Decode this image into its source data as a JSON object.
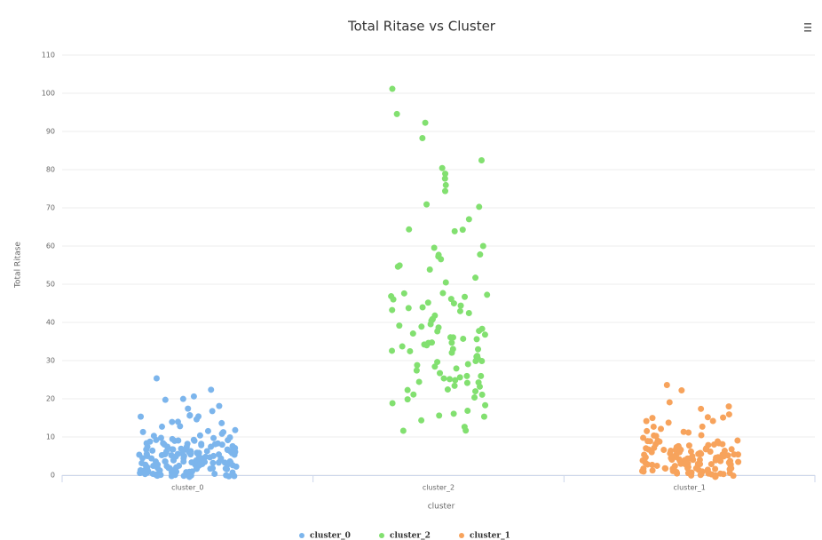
{
  "chart_data": {
    "type": "scatter",
    "title": "Total Ritase vs Cluster",
    "x_label": "cluster",
    "y_label": "Total Ritase",
    "categories": [
      "cluster_0",
      "cluster_2",
      "cluster_1"
    ],
    "ylim": [
      0,
      110
    ],
    "yticks": [
      0,
      10,
      20,
      30,
      40,
      50,
      60,
      70,
      80,
      90,
      100,
      110
    ],
    "grid": true,
    "legend": "bottom",
    "series": [
      {
        "name": "cluster_0",
        "color": "#7cb5ec",
        "category": 0,
        "values": [
          25,
          22,
          21,
          20,
          20,
          18,
          17,
          17,
          16,
          16,
          15,
          15,
          15,
          14,
          14,
          14,
          13,
          13,
          12,
          12,
          11,
          11,
          11,
          10,
          10,
          10,
          10,
          10,
          9,
          9,
          9,
          9,
          9,
          9,
          9,
          9,
          8,
          8,
          8,
          8,
          8,
          8,
          8,
          8,
          8,
          8,
          7,
          7,
          7,
          7,
          7,
          7,
          7,
          7,
          7,
          7,
          7,
          7,
          6,
          6,
          6,
          6,
          6,
          6,
          6,
          6,
          6,
          6,
          6,
          6,
          6,
          6,
          5,
          5,
          5,
          5,
          5,
          5,
          5,
          5,
          5,
          5,
          5,
          5,
          5,
          5,
          5,
          4,
          4,
          4,
          4,
          4,
          4,
          4,
          4,
          4,
          4,
          4,
          4,
          4,
          4,
          4,
          4,
          3,
          3,
          3,
          3,
          3,
          3,
          3,
          3,
          3,
          3,
          3,
          3,
          3,
          3,
          3,
          3,
          2,
          2,
          2,
          2,
          2,
          2,
          2,
          2,
          2,
          2,
          2,
          2,
          2,
          2,
          2,
          2,
          1,
          1,
          1,
          1,
          1,
          1,
          1,
          1,
          1,
          1,
          1,
          1,
          1,
          1,
          1,
          1,
          0,
          0,
          0,
          0,
          0,
          0,
          0,
          0,
          0,
          0,
          0,
          0,
          0,
          0,
          0,
          0
        ]
      },
      {
        "name": "cluster_2",
        "color": "#82e070",
        "category": 1,
        "values": [
          101,
          95,
          92,
          88,
          82,
          80,
          79,
          78,
          76,
          74,
          71,
          70,
          67,
          64,
          64,
          64,
          60,
          60,
          58,
          58,
          57,
          57,
          55,
          55,
          54,
          52,
          50,
          48,
          48,
          47,
          47,
          46,
          46,
          45,
          44,
          44,
          43,
          42,
          42,
          41,
          40,
          40,
          39,
          39,
          38,
          38,
          37,
          37,
          36,
          36,
          35,
          35,
          35,
          34,
          34,
          33,
          33,
          32,
          32,
          31,
          31,
          30,
          30,
          29,
          29,
          28,
          27,
          27,
          26,
          26,
          25,
          25,
          24,
          24,
          24,
          23,
          23,
          22,
          22,
          22,
          21,
          20,
          20,
          19,
          18,
          17,
          16,
          16,
          15,
          14,
          13,
          12,
          12,
          45,
          41,
          36,
          33,
          28,
          26,
          30,
          43,
          39,
          34,
          31,
          47,
          38,
          25,
          21,
          44,
          36
        ]
      },
      {
        "name": "cluster_1",
        "color": "#f7a35c",
        "category": 2,
        "values": [
          24,
          22,
          19,
          18,
          17,
          16,
          15,
          15,
          15,
          14,
          14,
          14,
          13,
          13,
          12,
          12,
          11,
          11,
          10,
          10,
          10,
          10,
          9,
          9,
          9,
          9,
          9,
          9,
          8,
          8,
          8,
          8,
          8,
          8,
          8,
          8,
          7,
          7,
          7,
          7,
          7,
          7,
          7,
          7,
          7,
          7,
          6,
          6,
          6,
          6,
          6,
          6,
          6,
          6,
          6,
          6,
          6,
          6,
          5,
          5,
          5,
          5,
          5,
          5,
          5,
          5,
          5,
          5,
          5,
          5,
          5,
          4,
          4,
          4,
          4,
          4,
          4,
          4,
          4,
          4,
          4,
          4,
          4,
          4,
          4,
          3,
          3,
          3,
          3,
          3,
          3,
          3,
          3,
          3,
          3,
          3,
          3,
          3,
          3,
          2,
          2,
          2,
          2,
          2,
          2,
          2,
          2,
          2,
          2,
          2,
          2,
          2,
          2,
          1,
          1,
          1,
          1,
          1,
          1,
          1,
          1,
          1,
          1,
          1,
          1,
          0,
          0,
          0,
          0,
          0,
          0,
          0,
          0,
          0,
          0,
          0,
          0
        ]
      }
    ]
  }
}
